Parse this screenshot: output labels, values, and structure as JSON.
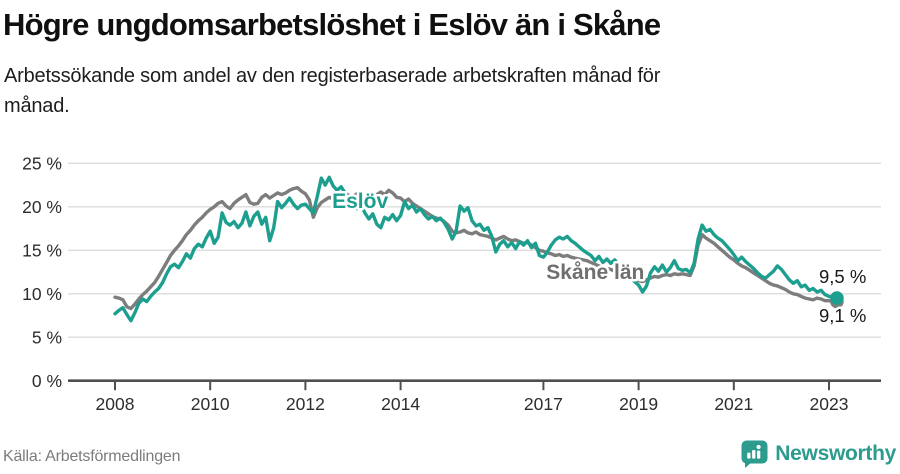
{
  "header": {
    "title": "Högre ungdomsarbetslöshet i Eslöv än i Skåne",
    "subtitle_line1": "Arbetssökande som andel av den registerbaserade arbetskraften månad för",
    "subtitle_line2": "månad."
  },
  "footer": {
    "source": "Källa: Arbetsförmedlingen",
    "brand": "Newsworthy",
    "brand_color": "#2d9b8e"
  },
  "chart_data": {
    "type": "line",
    "title": "Högre ungdomsarbetslöshet i Eslöv än i Skåne",
    "subtitle": "Arbetssökande som andel av den registerbaserade arbetskraften månad för månad.",
    "frequency": "monthly",
    "start": {
      "year": 2008,
      "month": 1
    },
    "x_ticks": [
      2008,
      2010,
      2012,
      2014,
      2017,
      2019,
      2021,
      2023
    ],
    "y_ticks": [
      0,
      5,
      10,
      15,
      20,
      25
    ],
    "y_tick_suffix": " %",
    "ylim": [
      0,
      26.5
    ],
    "xlim": [
      2007.0,
      2024.1
    ],
    "grid": true,
    "legend_position": "inline-labels",
    "colors": {
      "grid": "#dcdcdc",
      "axis": "#4f4f4f",
      "tick_text": "#2d2d2d",
      "accent_teal": "#1d9f90",
      "accent_gray": "#7d7d7d"
    },
    "series": [
      {
        "name": "Eslöv",
        "color": "#1d9f90",
        "end_value_label": "9,5 %",
        "values": [
          7.7,
          8.1,
          8.4,
          7.6,
          6.9,
          7.8,
          8.9,
          9.4,
          9.1,
          9.7,
          10.2,
          10.6,
          11.3,
          12.3,
          13.1,
          13.4,
          13.0,
          13.7,
          14.6,
          14.1,
          15.2,
          15.7,
          15.4,
          16.4,
          17.2,
          15.8,
          16.5,
          19.3,
          18.2,
          17.9,
          18.3,
          17.6,
          18.1,
          19.4,
          17.8,
          18.9,
          19.4,
          18.0,
          18.8,
          16.1,
          17.6,
          20.6,
          19.9,
          20.4,
          21.0,
          20.3,
          19.8,
          20.2,
          20.3,
          19.8,
          19.3,
          21.2,
          23.3,
          22.5,
          23.4,
          22.4,
          21.9,
          22.3,
          21.6,
          21.0,
          20.4,
          19.8,
          20.2,
          19.3,
          18.6,
          19.2,
          18.0,
          17.6,
          18.8,
          18.5,
          19.1,
          18.4,
          19.0,
          20.6,
          19.8,
          20.2,
          19.4,
          19.8,
          19.1,
          18.6,
          18.9,
          18.4,
          18.7,
          18.2,
          17.4,
          16.3,
          17.2,
          20.1,
          19.5,
          19.9,
          18.4,
          17.8,
          18.0,
          17.3,
          17.6,
          16.6,
          14.8,
          15.7,
          16.1,
          15.4,
          15.9,
          15.2,
          16.0,
          15.6,
          16.1,
          15.3,
          15.8,
          14.4,
          14.2,
          14.8,
          15.6,
          16.2,
          16.5,
          16.3,
          16.6,
          16.1,
          15.8,
          15.4,
          15.0,
          14.7,
          14.4,
          13.8,
          14.3,
          13.6,
          14.0,
          13.5,
          13.9,
          13.3,
          12.8,
          12.4,
          11.9,
          11.4,
          11.0,
          10.2,
          10.9,
          12.4,
          13.1,
          12.6,
          13.3,
          12.5,
          13.0,
          13.8,
          12.9,
          12.7,
          12.8,
          12.4,
          13.5,
          16.3,
          17.9,
          17.2,
          17.4,
          16.8,
          16.4,
          16.1,
          15.6,
          15.1,
          14.5,
          13.8,
          14.2,
          13.7,
          13.3,
          12.9,
          12.4,
          12.0,
          11.8,
          12.2,
          12.6,
          13.2,
          12.8,
          12.2,
          11.6,
          11.2,
          11.5,
          10.8,
          11.0,
          10.4,
          10.6,
          10.2,
          10.4,
          9.9,
          9.7,
          9.6,
          9.5
        ]
      },
      {
        "name": "Skåne län",
        "color": "#7d7d7d",
        "end_value_label": "9,1 %",
        "values": [
          9.6,
          9.5,
          9.3,
          8.5,
          8.3,
          8.8,
          9.4,
          9.9,
          10.3,
          10.8,
          11.3,
          12.0,
          12.8,
          13.6,
          14.4,
          15.0,
          15.5,
          16.1,
          16.8,
          17.3,
          17.9,
          18.4,
          18.8,
          19.3,
          19.7,
          20.0,
          20.4,
          20.6,
          20.1,
          19.8,
          20.4,
          20.8,
          21.1,
          21.4,
          20.5,
          20.3,
          20.4,
          21.1,
          21.4,
          21.0,
          21.3,
          21.6,
          21.4,
          21.6,
          21.9,
          22.1,
          22.2,
          21.8,
          21.5,
          20.8,
          18.8,
          19.9,
          20.5,
          20.8,
          21.1,
          20.9,
          21.2,
          21.4,
          21.6,
          21.3,
          21.2,
          21.5,
          21.3,
          21.0,
          20.8,
          21.1,
          21.4,
          21.7,
          21.4,
          21.9,
          21.6,
          21.1,
          21.0,
          20.6,
          20.9,
          20.4,
          20.1,
          19.8,
          19.5,
          19.2,
          18.9,
          18.7,
          18.6,
          18.3,
          17.9,
          17.2,
          17.0,
          17.1,
          17.3,
          17.0,
          16.9,
          17.1,
          16.8,
          16.7,
          16.6,
          16.4,
          16.2,
          16.4,
          16.6,
          16.3,
          16.1,
          16.2,
          16.0,
          15.8,
          15.9,
          15.6,
          15.3,
          15.0,
          14.9,
          14.7,
          14.6,
          14.4,
          14.5,
          14.3,
          14.4,
          14.2,
          14.1,
          14.0,
          13.9,
          13.8,
          13.6,
          13.4,
          13.2,
          13.0,
          12.9,
          12.8,
          12.6,
          12.5,
          12.3,
          12.1,
          11.9,
          11.7,
          11.5,
          11.4,
          11.6,
          11.8,
          12.0,
          11.9,
          12.1,
          12.2,
          12.1,
          12.3,
          12.2,
          12.3,
          12.2,
          12.1,
          13.2,
          15.6,
          16.8,
          16.4,
          16.1,
          15.8,
          15.4,
          15.0,
          14.6,
          14.2,
          13.9,
          13.5,
          13.2,
          13.0,
          12.7,
          12.4,
          12.1,
          11.8,
          11.5,
          11.2,
          11.0,
          10.9,
          10.7,
          10.5,
          10.2,
          10.0,
          9.9,
          9.7,
          9.5,
          9.4,
          9.3,
          9.5,
          9.4,
          9.2,
          9.2,
          9.1,
          9.1
        ]
      }
    ],
    "labels": [
      {
        "text": "Eslöv",
        "year": 2012.56,
        "value": 19.86,
        "color": "#1d9f90",
        "bold": true
      },
      {
        "text": "Skåne län",
        "year": 2017.06,
        "value": 11.7,
        "color": "#6f6f6f",
        "bold": true
      },
      {
        "text": "9,5 %",
        "year": 2022.79,
        "value": 11.24,
        "color": "#1a1a1a",
        "bold": false
      },
      {
        "text": "9,1 %",
        "year": 2022.79,
        "value": 6.75,
        "color": "#1a1a1a",
        "bold": false
      }
    ]
  }
}
